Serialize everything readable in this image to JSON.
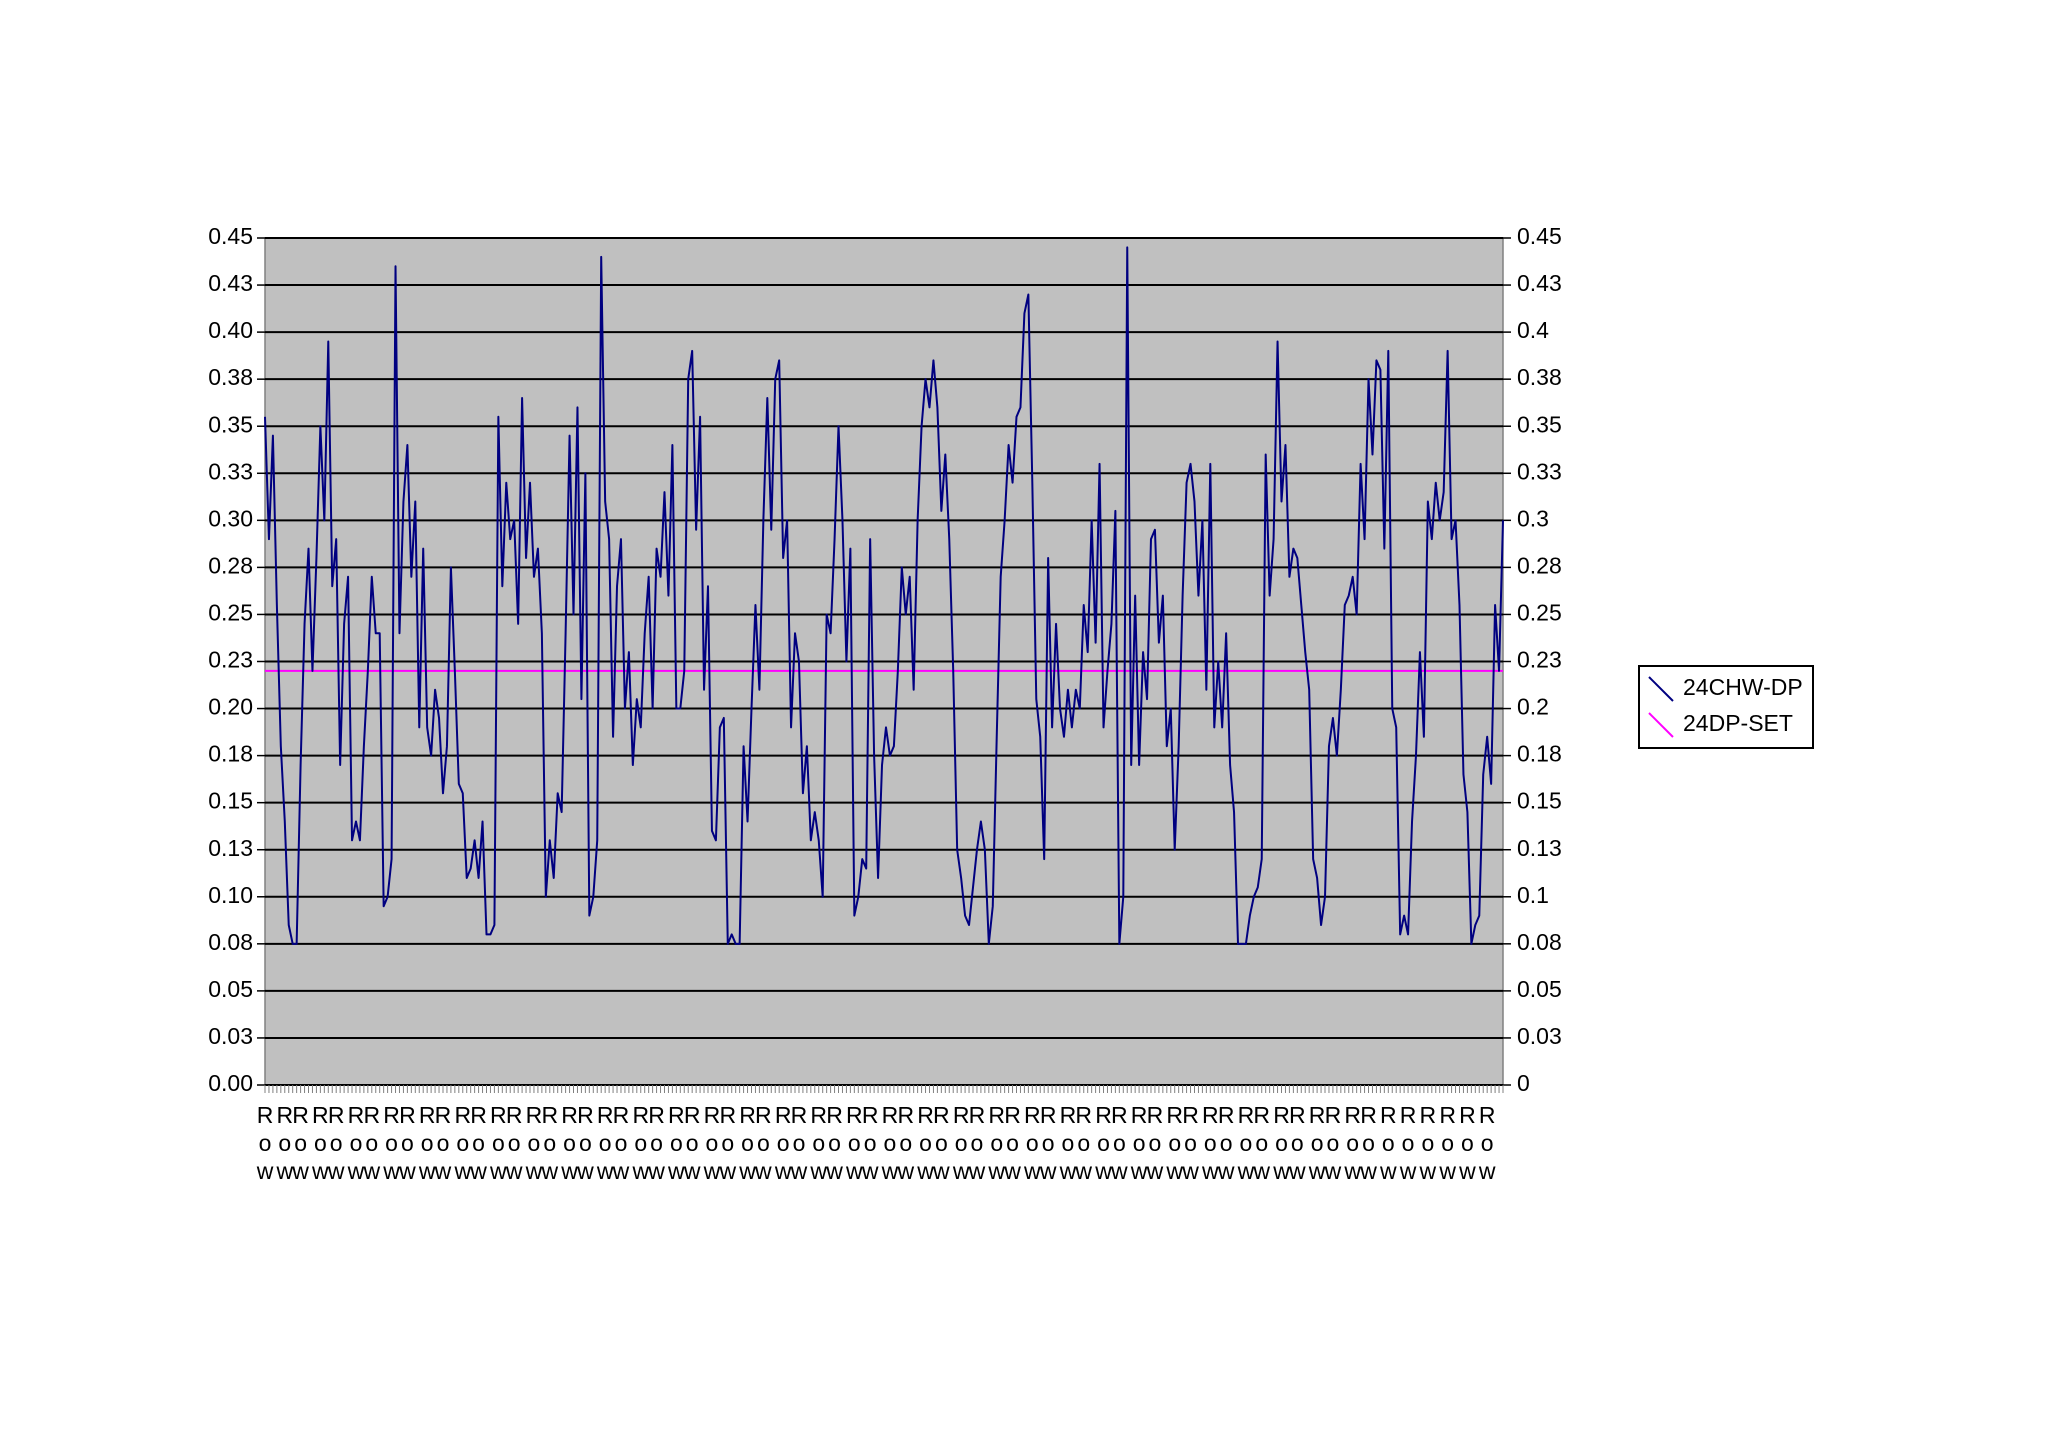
{
  "chart_data": {
    "type": "line",
    "categories": [
      "Row",
      null,
      null,
      null,
      null,
      "Row",
      null,
      null,
      null,
      "Row",
      null,
      null,
      null,
      null,
      "Row",
      null,
      null,
      null,
      "Row",
      null,
      null,
      null,
      null,
      "Row",
      null,
      null,
      null,
      "Row",
      null,
      null,
      null,
      null,
      "Row",
      null,
      null,
      null,
      "Row",
      null,
      null,
      null,
      null,
      "Row",
      null,
      null,
      null,
      "Row",
      null,
      null,
      null,
      null,
      "Row",
      null,
      null,
      null,
      "Row",
      null,
      null,
      null,
      null,
      "Row",
      null,
      null,
      null,
      "Row",
      null,
      null,
      null,
      null,
      "Row",
      null,
      null,
      null,
      "Row",
      null,
      null,
      null,
      null,
      "Row",
      null,
      null,
      null,
      "Row",
      null,
      null,
      null,
      null,
      "Row",
      null,
      null,
      null,
      "Row",
      null,
      null,
      null,
      null,
      "Row",
      null,
      null,
      null,
      "Row",
      null,
      null,
      null,
      null,
      "Row",
      null,
      null,
      null,
      "Row",
      null,
      null,
      null,
      null,
      "Row",
      null,
      null,
      null,
      "Row",
      null,
      null,
      null,
      null,
      "Row",
      null,
      null,
      null,
      "Row",
      null,
      null,
      null,
      null,
      "Row",
      null,
      null,
      null,
      "Row",
      null,
      null,
      null,
      null,
      "Row",
      null,
      null,
      null,
      "Row",
      null,
      null,
      null,
      null,
      "Row",
      null,
      null,
      null,
      "Row",
      null,
      null,
      null,
      null,
      "Row",
      null,
      null,
      null,
      "Row",
      null,
      null,
      null,
      null,
      "Row",
      null,
      null,
      null,
      "Row",
      null,
      null,
      null,
      null,
      "Row",
      null,
      null,
      null,
      "Row",
      null,
      null,
      null,
      null,
      "Row",
      null,
      null,
      null,
      "Row",
      null,
      null,
      null,
      null,
      "Row",
      null,
      null,
      null,
      "Row",
      null,
      null,
      null,
      null,
      "Row",
      null,
      null,
      null,
      "Row",
      null,
      null,
      null,
      null,
      "Row",
      null,
      null,
      null,
      "Row",
      null,
      null,
      null,
      null,
      "Row",
      null,
      null,
      null,
      "Row",
      null,
      null,
      null,
      null,
      "Row",
      null,
      null,
      null,
      "Row",
      null,
      null,
      null,
      null,
      "Row",
      null,
      null,
      null,
      "Row",
      null,
      null,
      null,
      null,
      "Row",
      null,
      null,
      null,
      "Row",
      null,
      null,
      null,
      null,
      "Row",
      null,
      null,
      null,
      "Row",
      null,
      null,
      null,
      null,
      "Row",
      null,
      null,
      null,
      "Row",
      null,
      null,
      null,
      null,
      "Row",
      null,
      null,
      null,
      "Row",
      null,
      null,
      null,
      null,
      "Row",
      null,
      null,
      null,
      null,
      "Row",
      null,
      null,
      null,
      null,
      "Row",
      null,
      null,
      null,
      null,
      "Row",
      null,
      null,
      null,
      null,
      "Row",
      null,
      null,
      null,
      null,
      "Row",
      null,
      null,
      null,
      null
    ],
    "series": [
      {
        "name": "24CHW-DP",
        "color": "#000080",
        "values": [
          0.355,
          0.29,
          0.345,
          0.255,
          0.18,
          0.14,
          0.085,
          0.075,
          0.075,
          0.17,
          0.245,
          0.285,
          0.22,
          0.28,
          0.35,
          0.3,
          0.395,
          0.265,
          0.29,
          0.17,
          0.245,
          0.27,
          0.13,
          0.14,
          0.13,
          0.18,
          0.22,
          0.27,
          0.24,
          0.24,
          0.095,
          0.1,
          0.12,
          0.435,
          0.24,
          0.31,
          0.34,
          0.27,
          0.31,
          0.19,
          0.285,
          0.19,
          0.175,
          0.21,
          0.195,
          0.155,
          0.18,
          0.275,
          0.22,
          0.16,
          0.155,
          0.11,
          0.115,
          0.13,
          0.11,
          0.14,
          0.08,
          0.08,
          0.085,
          0.355,
          0.265,
          0.32,
          0.29,
          0.3,
          0.245,
          0.365,
          0.28,
          0.32,
          0.27,
          0.285,
          0.24,
          0.1,
          0.13,
          0.11,
          0.155,
          0.145,
          0.24,
          0.345,
          0.25,
          0.36,
          0.205,
          0.325,
          0.09,
          0.1,
          0.13,
          0.44,
          0.31,
          0.29,
          0.185,
          0.265,
          0.29,
          0.2,
          0.23,
          0.17,
          0.205,
          0.19,
          0.24,
          0.27,
          0.2,
          0.285,
          0.27,
          0.315,
          0.26,
          0.34,
          0.2,
          0.2,
          0.22,
          0.375,
          0.39,
          0.295,
          0.355,
          0.21,
          0.265,
          0.135,
          0.13,
          0.19,
          0.195,
          0.075,
          0.08,
          0.075,
          0.075,
          0.18,
          0.14,
          0.2,
          0.255,
          0.21,
          0.3,
          0.365,
          0.295,
          0.375,
          0.385,
          0.28,
          0.3,
          0.19,
          0.24,
          0.225,
          0.155,
          0.18,
          0.13,
          0.145,
          0.13,
          0.1,
          0.25,
          0.24,
          0.29,
          0.35,
          0.3,
          0.225,
          0.285,
          0.09,
          0.1,
          0.12,
          0.115,
          0.29,
          0.175,
          0.11,
          0.17,
          0.19,
          0.175,
          0.18,
          0.22,
          0.275,
          0.25,
          0.27,
          0.21,
          0.3,
          0.35,
          0.375,
          0.36,
          0.385,
          0.36,
          0.305,
          0.335,
          0.29,
          0.22,
          0.125,
          0.11,
          0.09,
          0.085,
          0.105,
          0.125,
          0.14,
          0.125,
          0.075,
          0.095,
          0.185,
          0.27,
          0.3,
          0.34,
          0.32,
          0.355,
          0.36,
          0.41,
          0.42,
          0.32,
          0.205,
          0.185,
          0.12,
          0.28,
          0.19,
          0.245,
          0.2,
          0.185,
          0.21,
          0.19,
          0.21,
          0.2,
          0.255,
          0.23,
          0.3,
          0.235,
          0.33,
          0.19,
          0.22,
          0.245,
          0.305,
          0.075,
          0.1,
          0.445,
          0.17,
          0.26,
          0.17,
          0.23,
          0.205,
          0.29,
          0.295,
          0.235,
          0.26,
          0.18,
          0.2,
          0.125,
          0.18,
          0.26,
          0.32,
          0.33,
          0.31,
          0.26,
          0.3,
          0.21,
          0.33,
          0.19,
          0.225,
          0.19,
          0.24,
          0.17,
          0.145,
          0.075,
          0.075,
          0.075,
          0.09,
          0.1,
          0.105,
          0.12,
          0.335,
          0.26,
          0.29,
          0.395,
          0.31,
          0.34,
          0.27,
          0.285,
          0.28,
          0.255,
          0.23,
          0.21,
          0.12,
          0.11,
          0.085,
          0.1,
          0.18,
          0.195,
          0.175,
          0.21,
          0.255,
          0.26,
          0.27,
          0.25,
          0.33,
          0.29,
          0.375,
          0.335,
          0.385,
          0.38,
          0.285,
          0.39,
          0.2,
          0.19,
          0.08,
          0.09,
          0.08,
          0.14,
          0.175,
          0.23,
          0.185,
          0.31,
          0.29,
          0.32,
          0.3,
          0.315,
          0.39,
          0.29,
          0.3,
          0.255,
          0.165,
          0.145,
          0.075,
          0.085,
          0.09,
          0.165,
          0.185,
          0.16,
          0.255,
          0.22,
          0.3
        ]
      },
      {
        "name": "24DP-SET",
        "color": "#ff00ff",
        "values": [
          0.22,
          0.22,
          0.22,
          0.22,
          0.22,
          0.22,
          0.22,
          0.22,
          0.22,
          0.22,
          0.22,
          0.22,
          0.22,
          0.22,
          0.22,
          0.22,
          0.22,
          0.22,
          0.22,
          0.22,
          0.22,
          0.22,
          0.22,
          0.22,
          0.22,
          0.22,
          0.22,
          0.22,
          0.22,
          0.22,
          0.22,
          0.22,
          0.22,
          0.22,
          0.22,
          0.22,
          0.22,
          0.22,
          0.22,
          0.22,
          0.22,
          0.22,
          0.22,
          0.22,
          0.22,
          0.22,
          0.22,
          0.22,
          0.22,
          0.22,
          0.22,
          0.22,
          0.22,
          0.22,
          0.22,
          0.22,
          0.22,
          0.22,
          0.22,
          0.22,
          0.22,
          0.22,
          0.22,
          0.22,
          0.22,
          0.22,
          0.22,
          0.22,
          0.22,
          0.22,
          0.22,
          0.22,
          0.22,
          0.22,
          0.22,
          0.22,
          0.22,
          0.22,
          0.22,
          0.22,
          0.22,
          0.22,
          0.22,
          0.22,
          0.22,
          0.22,
          0.22,
          0.22,
          0.22,
          0.22,
          0.22,
          0.22,
          0.22,
          0.22,
          0.22,
          0.22,
          0.22,
          0.22,
          0.22,
          0.22,
          0.22,
          0.22,
          0.22,
          0.22,
          0.22,
          0.22,
          0.22,
          0.22,
          0.22,
          0.22,
          0.22,
          0.22,
          0.22,
          0.22,
          0.22,
          0.22,
          0.22,
          0.22,
          0.22,
          0.22,
          0.22,
          0.22,
          0.22,
          0.22,
          0.22,
          0.22,
          0.22,
          0.22,
          0.22,
          0.22,
          0.22,
          0.22,
          0.22,
          0.22,
          0.22,
          0.22,
          0.22,
          0.22,
          0.22,
          0.22,
          0.22,
          0.22,
          0.22,
          0.22,
          0.22,
          0.22,
          0.22,
          0.22,
          0.22,
          0.22,
          0.22,
          0.22,
          0.22,
          0.22,
          0.22,
          0.22,
          0.22,
          0.22,
          0.22,
          0.22,
          0.22,
          0.22,
          0.22,
          0.22,
          0.22,
          0.22,
          0.22,
          0.22,
          0.22,
          0.22,
          0.22,
          0.22,
          0.22,
          0.22,
          0.22,
          0.22,
          0.22,
          0.22,
          0.22,
          0.22,
          0.22,
          0.22,
          0.22,
          0.22,
          0.22,
          0.22,
          0.22,
          0.22,
          0.22,
          0.22,
          0.22,
          0.22,
          0.22,
          0.22,
          0.22,
          0.22,
          0.22,
          0.22,
          0.22,
          0.22,
          0.22,
          0.22,
          0.22,
          0.22,
          0.22,
          0.22,
          0.22,
          0.22,
          0.22,
          0.22,
          0.22,
          0.22,
          0.22,
          0.22,
          0.22,
          0.22,
          0.22,
          0.22,
          0.22,
          0.22,
          0.22,
          0.22,
          0.22,
          0.22,
          0.22,
          0.22,
          0.22,
          0.22,
          0.22,
          0.22,
          0.22,
          0.22,
          0.22,
          0.22,
          0.22,
          0.22,
          0.22,
          0.22,
          0.22,
          0.22,
          0.22,
          0.22,
          0.22,
          0.22,
          0.22,
          0.22,
          0.22,
          0.22,
          0.22,
          0.22,
          0.22,
          0.22,
          0.22,
          0.22,
          0.22,
          0.22,
          0.22,
          0.22,
          0.22,
          0.22,
          0.22,
          0.22,
          0.22,
          0.22,
          0.22,
          0.22,
          0.22,
          0.22,
          0.22,
          0.22,
          0.22,
          0.22,
          0.22,
          0.22,
          0.22,
          0.22,
          0.22,
          0.22,
          0.22,
          0.22,
          0.22,
          0.22,
          0.22,
          0.22,
          0.22,
          0.22,
          0.22,
          0.22,
          0.22,
          0.22,
          0.22,
          0.22,
          0.22,
          0.22,
          0.22,
          0.22,
          0.22,
          0.22,
          0.22,
          0.22,
          0.22,
          0.22,
          0.22,
          0.22,
          0.22,
          0.22,
          0.22,
          0.22,
          0.22,
          0.22,
          0.22,
          0.22,
          0.22,
          0.22
        ]
      }
    ],
    "ylim": [
      0,
      0.45
    ],
    "yticks": [
      {
        "value": 0,
        "label": "0.00"
      },
      {
        "value": 0.025,
        "label": "0.03"
      },
      0.05,
      {
        "value": 0.075,
        "label": "0.08"
      },
      {
        "value": 0.1,
        "label": "0.10"
      },
      {
        "value": 0.125,
        "label": "0.13"
      },
      0.15,
      {
        "value": 0.175,
        "label": "0.18"
      },
      {
        "value": 0.2,
        "label": "0.20"
      },
      {
        "value": 0.225,
        "label": "0.23"
      },
      0.25,
      {
        "value": 0.275,
        "label": "0.28"
      },
      {
        "value": 0.3,
        "label": "0.30"
      },
      {
        "value": 0.325,
        "label": "0.33"
      },
      0.35,
      {
        "value": 0.375,
        "label": "0.38"
      },
      {
        "value": 0.4,
        "label": "0.40"
      },
      {
        "value": 0.425,
        "label": "0.43"
      },
      0.45
    ],
    "y2lim": [
      0,
      0.45
    ],
    "y2ticks": [
      0,
      {
        "value": 0.025,
        "label": "0.03"
      },
      0.05,
      {
        "value": 0.075,
        "label": "0.08"
      },
      0.1,
      {
        "value": 0.125,
        "label": "0.13"
      },
      0.15,
      {
        "value": 0.175,
        "label": "0.18"
      },
      0.2,
      {
        "value": 0.225,
        "label": "0.23"
      },
      0.25,
      {
        "value": 0.275,
        "label": "0.28"
      },
      0.3,
      {
        "value": 0.325,
        "label": "0.33"
      },
      0.35,
      {
        "value": 0.375,
        "label": "0.38"
      },
      0.4,
      {
        "value": 0.425,
        "label": "0.43"
      },
      0.45
    ],
    "grid": true,
    "plot_background": "#c0c0c0",
    "legend": "right"
  }
}
